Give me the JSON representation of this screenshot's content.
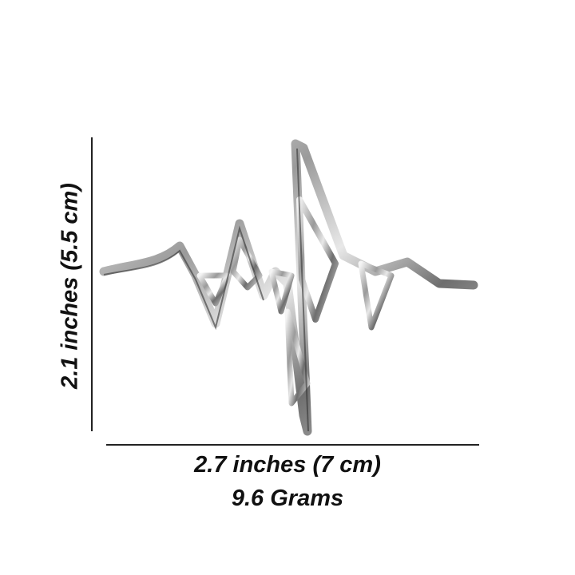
{
  "dimensions": {
    "height_label": "2.1 inches (5.5 cm)",
    "width_label": "2.7 inches (7 cm)",
    "weight_label": "9.6 Grams"
  },
  "product": {
    "name_icon": "heartbeat-pendant",
    "metal_color": "#c8c8c8"
  }
}
